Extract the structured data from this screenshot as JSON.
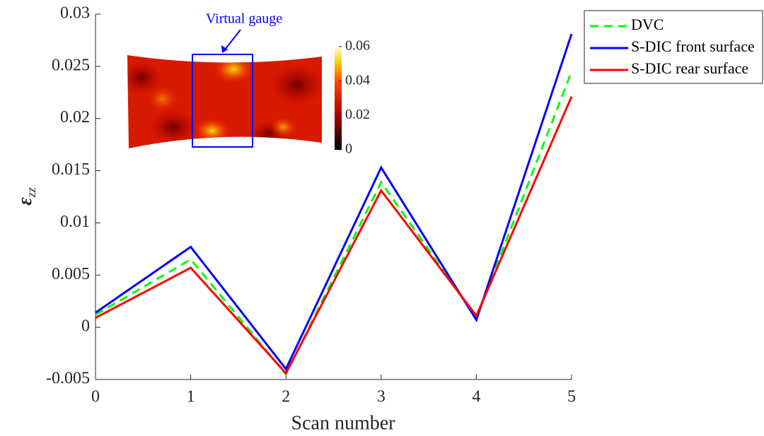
{
  "chart_data": {
    "type": "line",
    "xlabel": "Scan number",
    "ylabel": {
      "text": "ε",
      "subscript": "zz"
    },
    "x": [
      0,
      1,
      2,
      3,
      4,
      5
    ],
    "series": [
      {
        "name": "DVC",
        "color": "#00ff00",
        "dash": true,
        "values": [
          0.0012,
          0.0065,
          -0.0045,
          0.0139,
          0.0009,
          0.0245
        ]
      },
      {
        "name": "S-DIC front surface",
        "color": "#0000ff",
        "dash": false,
        "values": [
          0.0014,
          0.0077,
          -0.004,
          0.0153,
          0.0007,
          0.0281
        ]
      },
      {
        "name": "S-DIC rear surface",
        "color": "#ff0000",
        "dash": false,
        "values": [
          0.0009,
          0.0057,
          -0.0044,
          0.0131,
          0.0011,
          0.0221
        ]
      }
    ],
    "xlim": [
      0,
      5
    ],
    "xticks": [
      0,
      1,
      2,
      3,
      4,
      5
    ],
    "ylim": [
      -0.005,
      0.03
    ],
    "yticks": [
      {
        "value": -0.005,
        "label": "-0.005"
      },
      0,
      {
        "value": 0.005,
        "label": "0.005"
      },
      {
        "value": 0.01,
        "label": "0.01"
      },
      {
        "value": 0.015,
        "label": "0.015"
      },
      {
        "value": 0.02,
        "label": "0.02"
      },
      {
        "value": 0.025,
        "label": "0.025"
      },
      {
        "value": 0.03,
        "label": "0.03"
      }
    ],
    "legend": "outside-top-right",
    "inset": {
      "annotation": "Virtual gauge",
      "clim": [
        0,
        0.06
      ],
      "colorbar_ticks": [
        0,
        0.02,
        0.04,
        0.06
      ]
    }
  }
}
